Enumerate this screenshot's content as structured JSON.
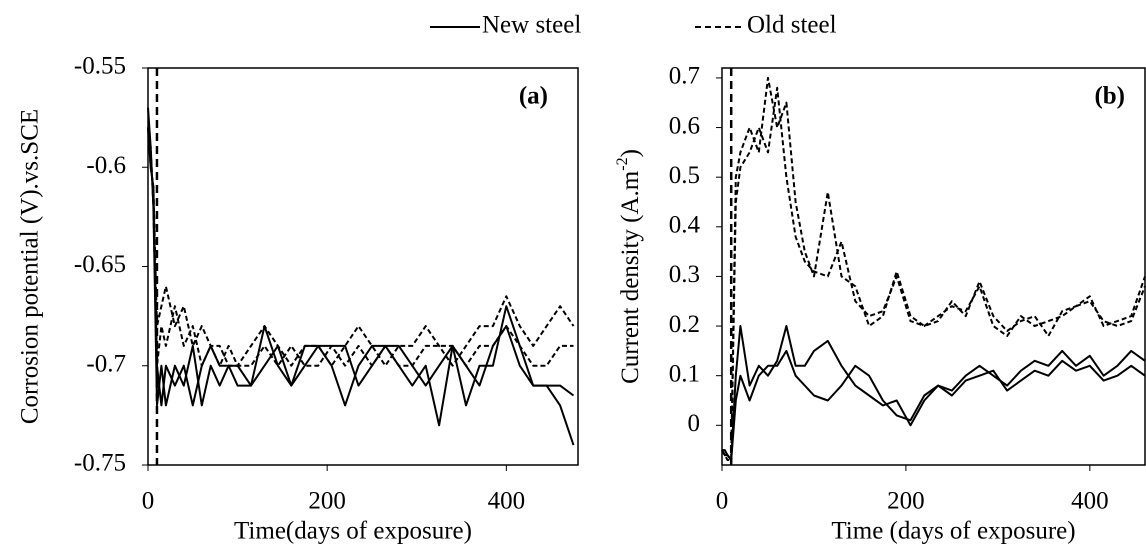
{
  "legend": [
    {
      "name": "New steel",
      "dash": "solid"
    },
    {
      "name": "Old steel",
      "dash": "dashed"
    }
  ],
  "chart_data": [
    {
      "type": "line",
      "annotation": "(a)",
      "xlabel": "Time(days of exposure)",
      "ylabel": "Corrosion potential (V).vs.SCE",
      "xlim": [
        0,
        480
      ],
      "xticks": [
        0,
        200,
        400
      ],
      "ylim": [
        -0.75,
        -0.55
      ],
      "yticks": [
        -0.75,
        -0.7,
        -0.65,
        -0.6,
        -0.55
      ],
      "vline": 10,
      "x": [
        0,
        3,
        6,
        10,
        15,
        20,
        30,
        40,
        50,
        60,
        70,
        80,
        90,
        100,
        115,
        130,
        145,
        160,
        175,
        190,
        205,
        220,
        235,
        250,
        265,
        280,
        295,
        310,
        325,
        340,
        355,
        370,
        385,
        400,
        415,
        430,
        445,
        460,
        475
      ],
      "series": [
        {
          "dash": "solid",
          "color": "#000000",
          "lines": [
            [
              -0.57,
              -0.59,
              -0.62,
              -0.72,
              -0.7,
              -0.72,
              -0.7,
              -0.71,
              -0.69,
              -0.72,
              -0.7,
              -0.71,
              -0.7,
              -0.71,
              -0.71,
              -0.68,
              -0.7,
              -0.71,
              -0.69,
              -0.69,
              -0.7,
              -0.72,
              -0.7,
              -0.69,
              -0.69,
              -0.7,
              -0.71,
              -0.7,
              -0.73,
              -0.69,
              -0.7,
              -0.71,
              -0.69,
              -0.68,
              -0.7,
              -0.71,
              -0.71,
              -0.72,
              -0.74
            ],
            [
              -0.58,
              -0.6,
              -0.61,
              -0.7,
              -0.72,
              -0.7,
              -0.71,
              -0.7,
              -0.72,
              -0.7,
              -0.69,
              -0.7,
              -0.7,
              -0.7,
              -0.71,
              -0.7,
              -0.69,
              -0.71,
              -0.7,
              -0.69,
              -0.69,
              -0.69,
              -0.71,
              -0.7,
              -0.69,
              -0.69,
              -0.7,
              -0.71,
              -0.7,
              -0.69,
              -0.72,
              -0.7,
              -0.7,
              -0.67,
              -0.69,
              -0.71,
              -0.71,
              -0.71,
              -0.715
            ]
          ]
        },
        {
          "dash": "dashed",
          "color": "#000000",
          "lines": [
            [
              -0.58,
              -0.6,
              -0.61,
              -0.68,
              -0.67,
              -0.66,
              -0.68,
              -0.67,
              -0.69,
              -0.68,
              -0.69,
              -0.69,
              -0.7,
              -0.7,
              -0.69,
              -0.68,
              -0.69,
              -0.7,
              -0.69,
              -0.69,
              -0.7,
              -0.69,
              -0.68,
              -0.69,
              -0.7,
              -0.69,
              -0.69,
              -0.68,
              -0.69,
              -0.7,
              -0.69,
              -0.68,
              -0.68,
              -0.665,
              -0.68,
              -0.69,
              -0.68,
              -0.67,
              -0.68
            ],
            [
              -0.58,
              -0.59,
              -0.62,
              -0.7,
              -0.68,
              -0.69,
              -0.67,
              -0.69,
              -0.68,
              -0.7,
              -0.69,
              -0.7,
              -0.69,
              -0.7,
              -0.7,
              -0.69,
              -0.7,
              -0.69,
              -0.7,
              -0.7,
              -0.69,
              -0.7,
              -0.69,
              -0.7,
              -0.69,
              -0.7,
              -0.7,
              -0.69,
              -0.69,
              -0.69,
              -0.7,
              -0.69,
              -0.69,
              -0.68,
              -0.69,
              -0.7,
              -0.7,
              -0.69,
              -0.69
            ]
          ]
        }
      ]
    },
    {
      "type": "line",
      "annotation": "(b)",
      "xlabel": "Time (days of exposure)",
      "ylabel": {
        "text": "Current density (A.m",
        "sup": "-2",
        "end": ")"
      },
      "xlim": [
        0,
        460
      ],
      "xticks": [
        0,
        200,
        400
      ],
      "ylim": [
        -0.08,
        0.72
      ],
      "yticks": [
        0,
        0.1,
        0.2,
        0.3,
        0.4,
        0.5,
        0.6,
        0.7
      ],
      "vline": 10,
      "x": [
        0,
        3,
        6,
        10,
        15,
        20,
        30,
        40,
        50,
        60,
        70,
        80,
        90,
        100,
        115,
        130,
        145,
        160,
        175,
        190,
        205,
        220,
        235,
        250,
        265,
        280,
        295,
        310,
        325,
        340,
        355,
        370,
        385,
        400,
        415,
        430,
        445,
        460
      ],
      "series": [
        {
          "dash": "solid",
          "color": "#000000",
          "lines": [
            [
              -0.05,
              -0.05,
              -0.06,
              -0.07,
              0.1,
              0.2,
              0.08,
              0.12,
              0.1,
              0.13,
              0.2,
              0.12,
              0.12,
              0.15,
              0.17,
              0.12,
              0.08,
              0.06,
              0.04,
              0.05,
              0.0,
              0.05,
              0.08,
              0.07,
              0.1,
              0.12,
              0.1,
              0.08,
              0.11,
              0.13,
              0.12,
              0.15,
              0.12,
              0.14,
              0.1,
              0.12,
              0.15,
              0.13
            ],
            [
              -0.05,
              -0.06,
              -0.06,
              -0.07,
              0.05,
              0.1,
              0.05,
              0.1,
              0.12,
              0.12,
              0.15,
              0.1,
              0.08,
              0.06,
              0.05,
              0.08,
              0.12,
              0.1,
              0.05,
              0.02,
              0.01,
              0.06,
              0.08,
              0.06,
              0.09,
              0.1,
              0.11,
              0.07,
              0.09,
              0.11,
              0.1,
              0.13,
              0.11,
              0.12,
              0.09,
              0.1,
              0.12,
              0.1
            ]
          ]
        },
        {
          "dash": "dashed",
          "color": "#000000",
          "lines": [
            [
              -0.05,
              -0.06,
              -0.07,
              -0.07,
              0.5,
              0.55,
              0.6,
              0.55,
              0.7,
              0.6,
              0.65,
              0.45,
              0.35,
              0.3,
              0.47,
              0.3,
              0.28,
              0.2,
              0.22,
              0.31,
              0.22,
              0.2,
              0.21,
              0.25,
              0.22,
              0.29,
              0.22,
              0.19,
              0.21,
              0.22,
              0.18,
              0.23,
              0.24,
              0.26,
              0.2,
              0.21,
              0.22,
              0.3
            ],
            [
              -0.05,
              -0.06,
              -0.06,
              -0.07,
              0.45,
              0.52,
              0.55,
              0.6,
              0.55,
              0.68,
              0.5,
              0.38,
              0.33,
              0.31,
              0.3,
              0.37,
              0.25,
              0.22,
              0.23,
              0.3,
              0.21,
              0.2,
              0.22,
              0.24,
              0.23,
              0.28,
              0.2,
              0.18,
              0.22,
              0.2,
              0.21,
              0.22,
              0.24,
              0.25,
              0.21,
              0.2,
              0.21,
              0.28
            ]
          ]
        }
      ]
    }
  ]
}
